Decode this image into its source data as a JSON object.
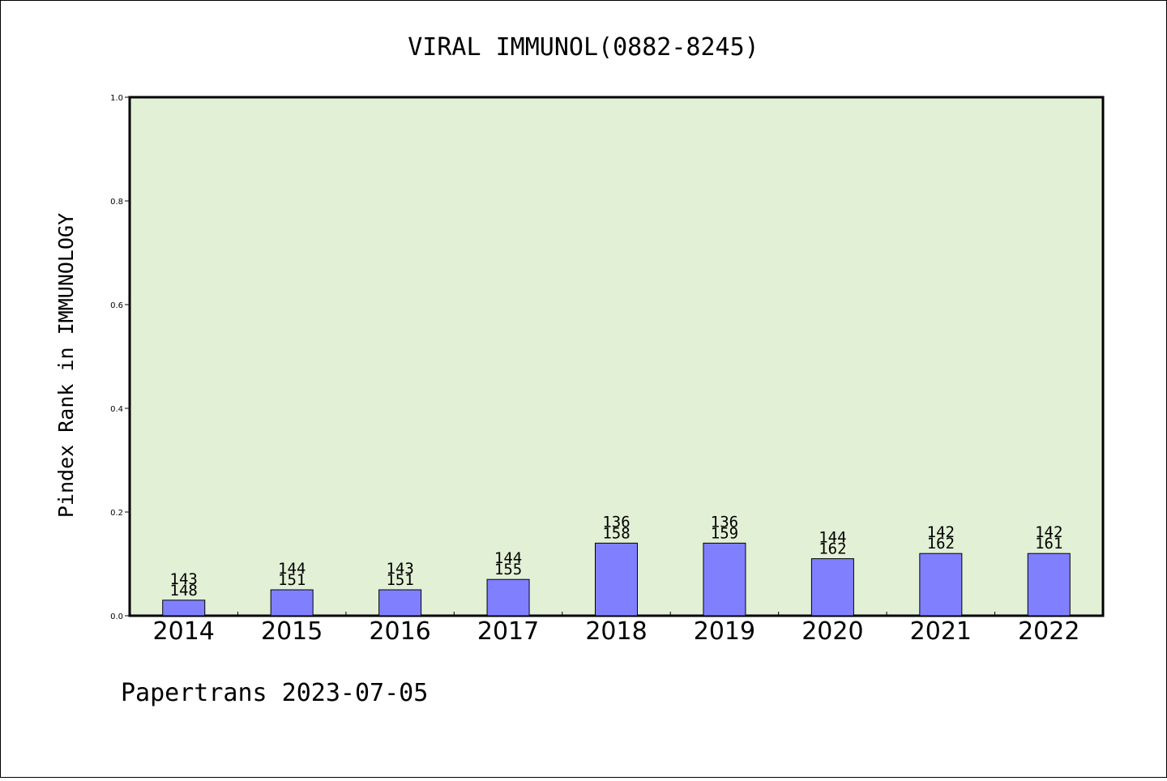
{
  "chart_data": {
    "type": "bar",
    "title": "VIRAL IMMUNOL(0882-8245)",
    "xlabel": "",
    "ylabel": "Pindex Rank in IMMUNOLOGY",
    "ylim": [
      0,
      1.0
    ],
    "yticks": [
      "0.0",
      "0.2",
      "0.4",
      "0.6",
      "0.8",
      "1.0"
    ],
    "categories": [
      "2014",
      "2015",
      "2016",
      "2017",
      "2018",
      "2019",
      "2020",
      "2021",
      "2022"
    ],
    "values": [
      0.03,
      0.05,
      0.05,
      0.07,
      0.14,
      0.14,
      0.11,
      0.12,
      0.12
    ],
    "rank_labels": [
      "143",
      "144",
      "143",
      "144",
      "136",
      "136",
      "144",
      "142",
      "142"
    ],
    "total_labels": [
      "148",
      "151",
      "151",
      "155",
      "158",
      "159",
      "162",
      "162",
      "161"
    ],
    "grid": false,
    "legend": "none",
    "colors": {
      "plot_background": "#e2f0d6",
      "bar_fill": "#8080ff",
      "bar_stroke": "#000000",
      "axis": "#000000"
    }
  },
  "footer": "Papertrans 2023-07-05"
}
